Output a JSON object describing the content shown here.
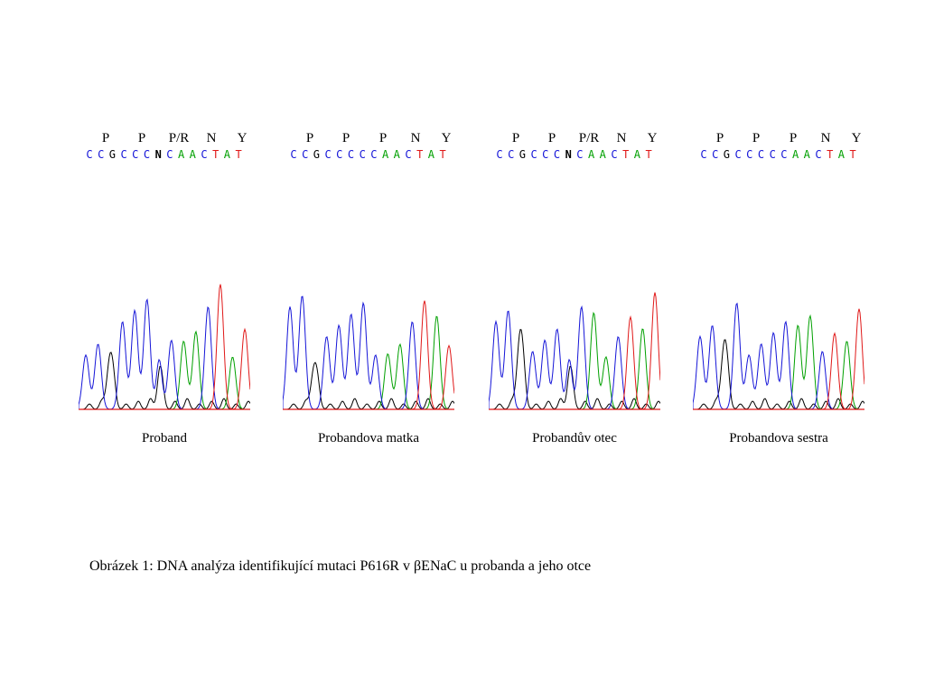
{
  "colors": {
    "A": "#00a000",
    "C": "#1515d8",
    "G": "#000000",
    "T": "#e01818",
    "N": "#000000"
  },
  "panels": [
    {
      "label": "Proband",
      "amino_acids": [
        "P",
        "P",
        "P/R",
        "N",
        "Y"
      ],
      "sequence": [
        "C",
        "C",
        "G",
        "C",
        "C",
        "C",
        "N",
        "C",
        "A",
        "A",
        "C",
        "T",
        "A",
        "T"
      ]
    },
    {
      "label": "Probandova matka",
      "amino_acids": [
        "P",
        "P",
        "P",
        "N",
        "Y"
      ],
      "sequence": [
        "C",
        "C",
        "G",
        "C",
        "C",
        "C",
        "C",
        "C",
        "A",
        "A",
        "C",
        "T",
        "A",
        "T"
      ]
    },
    {
      "label": "Probandův otec",
      "amino_acids": [
        "P",
        "P",
        "P/R",
        "N",
        "Y"
      ],
      "sequence": [
        "C",
        "C",
        "G",
        "C",
        "C",
        "C",
        "N",
        "C",
        "A",
        "A",
        "C",
        "T",
        "A",
        "T"
      ]
    },
    {
      "label": "Probandova sestra",
      "amino_acids": [
        "P",
        "P",
        "P",
        "N",
        "Y"
      ],
      "sequence": [
        "C",
        "C",
        "G",
        "C",
        "C",
        "C",
        "C",
        "C",
        "A",
        "A",
        "C",
        "T",
        "A",
        "T"
      ]
    }
  ],
  "caption": "Obrázek 1: DNA analýza identifikující mutaci P616R v βENaC u probanda a jeho otce"
}
